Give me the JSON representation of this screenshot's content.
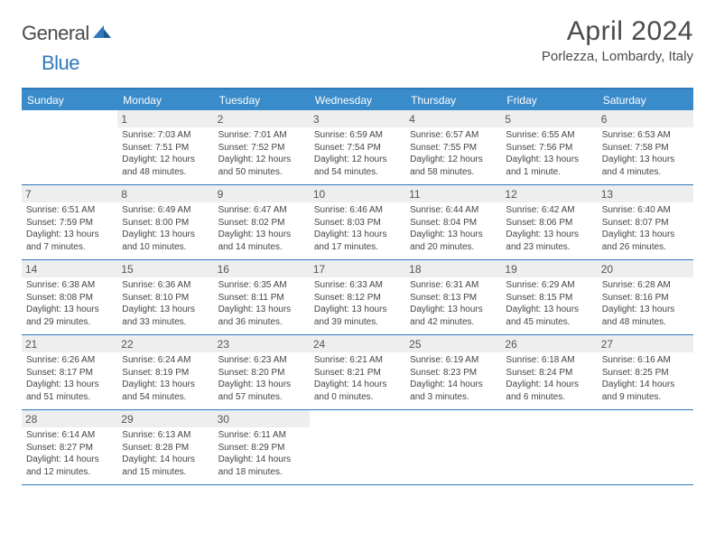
{
  "logo": {
    "text1": "General",
    "text2": "Blue"
  },
  "title": "April 2024",
  "location": "Porlezza, Lombardy, Italy",
  "colors": {
    "header_bg": "#3a8bc9",
    "border": "#2f78bd",
    "daynum_bg": "#eeeeee",
    "text": "#4a4a4a"
  },
  "weekdays": [
    "Sunday",
    "Monday",
    "Tuesday",
    "Wednesday",
    "Thursday",
    "Friday",
    "Saturday"
  ],
  "weeks": [
    [
      {
        "n": "",
        "empty": true
      },
      {
        "n": "1",
        "sr": "Sunrise: 7:03 AM",
        "ss": "Sunset: 7:51 PM",
        "dl1": "Daylight: 12 hours",
        "dl2": "and 48 minutes."
      },
      {
        "n": "2",
        "sr": "Sunrise: 7:01 AM",
        "ss": "Sunset: 7:52 PM",
        "dl1": "Daylight: 12 hours",
        "dl2": "and 50 minutes."
      },
      {
        "n": "3",
        "sr": "Sunrise: 6:59 AM",
        "ss": "Sunset: 7:54 PM",
        "dl1": "Daylight: 12 hours",
        "dl2": "and 54 minutes."
      },
      {
        "n": "4",
        "sr": "Sunrise: 6:57 AM",
        "ss": "Sunset: 7:55 PM",
        "dl1": "Daylight: 12 hours",
        "dl2": "and 58 minutes."
      },
      {
        "n": "5",
        "sr": "Sunrise: 6:55 AM",
        "ss": "Sunset: 7:56 PM",
        "dl1": "Daylight: 13 hours",
        "dl2": "and 1 minute."
      },
      {
        "n": "6",
        "sr": "Sunrise: 6:53 AM",
        "ss": "Sunset: 7:58 PM",
        "dl1": "Daylight: 13 hours",
        "dl2": "and 4 minutes."
      }
    ],
    [
      {
        "n": "7",
        "sr": "Sunrise: 6:51 AM",
        "ss": "Sunset: 7:59 PM",
        "dl1": "Daylight: 13 hours",
        "dl2": "and 7 minutes."
      },
      {
        "n": "8",
        "sr": "Sunrise: 6:49 AM",
        "ss": "Sunset: 8:00 PM",
        "dl1": "Daylight: 13 hours",
        "dl2": "and 10 minutes."
      },
      {
        "n": "9",
        "sr": "Sunrise: 6:47 AM",
        "ss": "Sunset: 8:02 PM",
        "dl1": "Daylight: 13 hours",
        "dl2": "and 14 minutes."
      },
      {
        "n": "10",
        "sr": "Sunrise: 6:46 AM",
        "ss": "Sunset: 8:03 PM",
        "dl1": "Daylight: 13 hours",
        "dl2": "and 17 minutes."
      },
      {
        "n": "11",
        "sr": "Sunrise: 6:44 AM",
        "ss": "Sunset: 8:04 PM",
        "dl1": "Daylight: 13 hours",
        "dl2": "and 20 minutes."
      },
      {
        "n": "12",
        "sr": "Sunrise: 6:42 AM",
        "ss": "Sunset: 8:06 PM",
        "dl1": "Daylight: 13 hours",
        "dl2": "and 23 minutes."
      },
      {
        "n": "13",
        "sr": "Sunrise: 6:40 AM",
        "ss": "Sunset: 8:07 PM",
        "dl1": "Daylight: 13 hours",
        "dl2": "and 26 minutes."
      }
    ],
    [
      {
        "n": "14",
        "sr": "Sunrise: 6:38 AM",
        "ss": "Sunset: 8:08 PM",
        "dl1": "Daylight: 13 hours",
        "dl2": "and 29 minutes."
      },
      {
        "n": "15",
        "sr": "Sunrise: 6:36 AM",
        "ss": "Sunset: 8:10 PM",
        "dl1": "Daylight: 13 hours",
        "dl2": "and 33 minutes."
      },
      {
        "n": "16",
        "sr": "Sunrise: 6:35 AM",
        "ss": "Sunset: 8:11 PM",
        "dl1": "Daylight: 13 hours",
        "dl2": "and 36 minutes."
      },
      {
        "n": "17",
        "sr": "Sunrise: 6:33 AM",
        "ss": "Sunset: 8:12 PM",
        "dl1": "Daylight: 13 hours",
        "dl2": "and 39 minutes."
      },
      {
        "n": "18",
        "sr": "Sunrise: 6:31 AM",
        "ss": "Sunset: 8:13 PM",
        "dl1": "Daylight: 13 hours",
        "dl2": "and 42 minutes."
      },
      {
        "n": "19",
        "sr": "Sunrise: 6:29 AM",
        "ss": "Sunset: 8:15 PM",
        "dl1": "Daylight: 13 hours",
        "dl2": "and 45 minutes."
      },
      {
        "n": "20",
        "sr": "Sunrise: 6:28 AM",
        "ss": "Sunset: 8:16 PM",
        "dl1": "Daylight: 13 hours",
        "dl2": "and 48 minutes."
      }
    ],
    [
      {
        "n": "21",
        "sr": "Sunrise: 6:26 AM",
        "ss": "Sunset: 8:17 PM",
        "dl1": "Daylight: 13 hours",
        "dl2": "and 51 minutes."
      },
      {
        "n": "22",
        "sr": "Sunrise: 6:24 AM",
        "ss": "Sunset: 8:19 PM",
        "dl1": "Daylight: 13 hours",
        "dl2": "and 54 minutes."
      },
      {
        "n": "23",
        "sr": "Sunrise: 6:23 AM",
        "ss": "Sunset: 8:20 PM",
        "dl1": "Daylight: 13 hours",
        "dl2": "and 57 minutes."
      },
      {
        "n": "24",
        "sr": "Sunrise: 6:21 AM",
        "ss": "Sunset: 8:21 PM",
        "dl1": "Daylight: 14 hours",
        "dl2": "and 0 minutes."
      },
      {
        "n": "25",
        "sr": "Sunrise: 6:19 AM",
        "ss": "Sunset: 8:23 PM",
        "dl1": "Daylight: 14 hours",
        "dl2": "and 3 minutes."
      },
      {
        "n": "26",
        "sr": "Sunrise: 6:18 AM",
        "ss": "Sunset: 8:24 PM",
        "dl1": "Daylight: 14 hours",
        "dl2": "and 6 minutes."
      },
      {
        "n": "27",
        "sr": "Sunrise: 6:16 AM",
        "ss": "Sunset: 8:25 PM",
        "dl1": "Daylight: 14 hours",
        "dl2": "and 9 minutes."
      }
    ],
    [
      {
        "n": "28",
        "sr": "Sunrise: 6:14 AM",
        "ss": "Sunset: 8:27 PM",
        "dl1": "Daylight: 14 hours",
        "dl2": "and 12 minutes."
      },
      {
        "n": "29",
        "sr": "Sunrise: 6:13 AM",
        "ss": "Sunset: 8:28 PM",
        "dl1": "Daylight: 14 hours",
        "dl2": "and 15 minutes."
      },
      {
        "n": "30",
        "sr": "Sunrise: 6:11 AM",
        "ss": "Sunset: 8:29 PM",
        "dl1": "Daylight: 14 hours",
        "dl2": "and 18 minutes."
      },
      {
        "n": "",
        "empty": true
      },
      {
        "n": "",
        "empty": true
      },
      {
        "n": "",
        "empty": true
      },
      {
        "n": "",
        "empty": true
      }
    ]
  ]
}
